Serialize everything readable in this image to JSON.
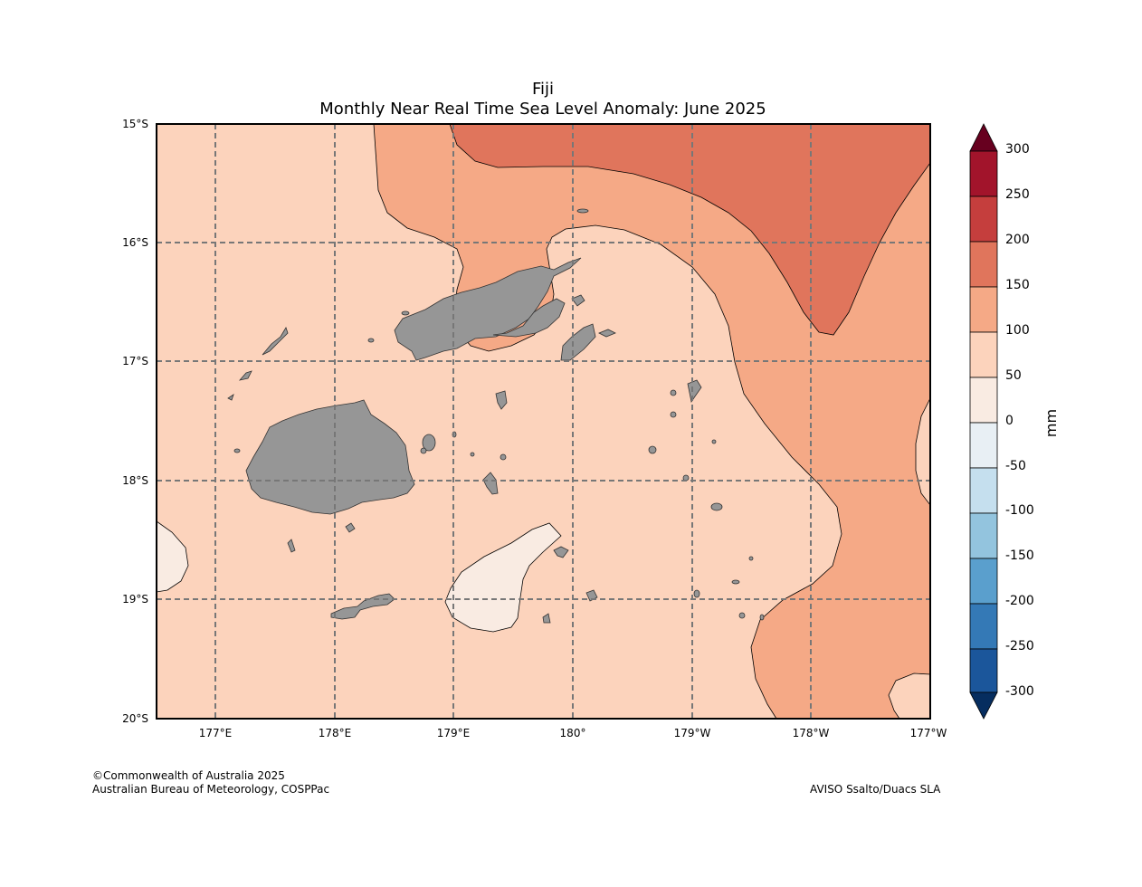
{
  "title": "Fiji",
  "subtitle": "Monthly Near Real Time Sea Level Anomaly: June 2025",
  "lat_labels": [
    "15°S",
    "16°S",
    "17°S",
    "18°S",
    "19°S",
    "20°S"
  ],
  "lon_labels": [
    "177°E",
    "178°E",
    "179°E",
    "180°",
    "179°W",
    "178°W",
    "177°W"
  ],
  "colorbar": {
    "unit": "mm",
    "ticks": [
      "300",
      "250",
      "200",
      "150",
      "100",
      "50",
      "0",
      "-50",
      "-100",
      "-150",
      "-200",
      "-250",
      "-300"
    ],
    "colors": {
      "above": "#67001f",
      "250_300": "#a2142b",
      "200_250": "#c53e3d",
      "150_200": "#e0755c",
      "100_150": "#f5a986",
      "50_100": "#fcd3bc",
      "0_50": "#f9ebe2",
      "m50_0": "#e8eff4",
      "m100_m50": "#c5dfee",
      "m150_m100": "#93c4de",
      "m200_m150": "#5a9fcd",
      "m250_m200": "#3479b6",
      "m300_m250": "#1b569b",
      "below": "#062d5f"
    }
  },
  "land_color": "#969696",
  "grid_color": "#777777",
  "chart_data": {
    "type": "heatmap",
    "title": "Fiji",
    "subtitle": "Monthly Near Real Time Sea Level Anomaly: June 2025",
    "units": "mm",
    "lon_range": [
      "176.5°E",
      "177°W"
    ],
    "lat_range": [
      "15°S",
      "20°S"
    ],
    "levels": [
      -300,
      -250,
      -200,
      -150,
      -100,
      -50,
      0,
      50,
      100,
      150,
      200,
      250,
      300
    ],
    "regions": [
      {
        "range": "50 to 100 mm",
        "area": "background over most of domain"
      },
      {
        "range": "100 to 150 mm",
        "area": "north-central and eastern band"
      },
      {
        "range": "150 to 200 mm",
        "area": "north-east corner"
      },
      {
        "range": "0 to 50 mm",
        "area": "patches south of Viti Levu and at western/eastern edges"
      }
    ]
  },
  "footer": {
    "copyright": "©Commonwealth of Australia 2025",
    "agency": "Australian Bureau of Meteorology, COSPPac",
    "source": "AVISO Ssalto/Duacs SLA"
  }
}
